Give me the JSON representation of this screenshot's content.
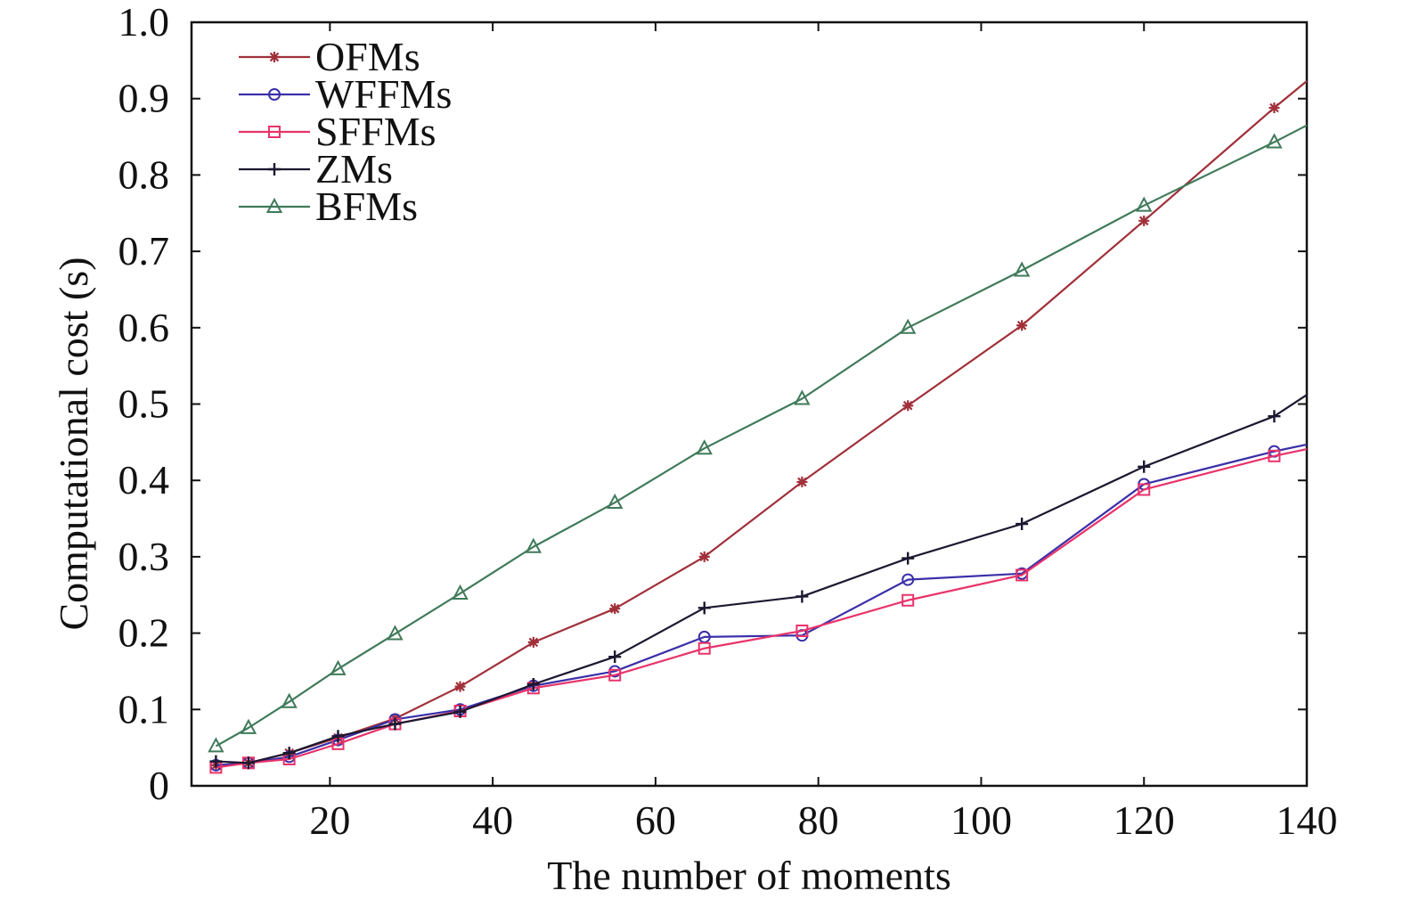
{
  "chart_data": {
    "type": "line",
    "title": "",
    "xlabel": "The number of moments",
    "ylabel": "Computational cost (s)",
    "xlim": [
      3,
      140
    ],
    "ylim": [
      0,
      1.0
    ],
    "x_ticks": [
      20,
      40,
      60,
      80,
      100,
      120,
      140
    ],
    "x_tick_labels": [
      "20",
      "40",
      "60",
      "80",
      "100",
      "120",
      "140"
    ],
    "y_ticks": [
      0,
      0.1,
      0.2,
      0.3,
      0.4,
      0.5,
      0.6,
      0.7,
      0.8,
      0.9,
      1.0
    ],
    "y_tick_labels": [
      "0",
      "0.1",
      "0.2",
      "0.3",
      "0.4",
      "0.5",
      "0.6",
      "0.7",
      "0.8",
      "0.9",
      "1.0"
    ],
    "grid": false,
    "legend_position": "top-left",
    "x": [
      6,
      10,
      15,
      21,
      28,
      36,
      45,
      55,
      66,
      78,
      91,
      105,
      120,
      136
    ],
    "series": [
      {
        "name": "OFMs",
        "marker": "asterisk",
        "color": "#a0303a",
        "values": [
          0.027,
          0.03,
          0.043,
          0.063,
          0.088,
          0.13,
          0.188,
          0.232,
          0.3,
          0.398,
          0.498,
          0.603,
          0.74,
          0.888
        ],
        "end_value": 0.923
      },
      {
        "name": "WFFMs",
        "marker": "circle",
        "color": "#3a2fa8",
        "values": [
          0.027,
          0.03,
          0.038,
          0.06,
          0.087,
          0.1,
          0.131,
          0.15,
          0.195,
          0.197,
          0.27,
          0.278,
          0.395,
          0.438
        ],
        "end_value": 0.447
      },
      {
        "name": "SFFMs",
        "marker": "square",
        "color": "#e8336a",
        "values": [
          0.024,
          0.03,
          0.035,
          0.055,
          0.081,
          0.098,
          0.128,
          0.145,
          0.18,
          0.203,
          0.243,
          0.276,
          0.388,
          0.432
        ],
        "end_value": 0.441
      },
      {
        "name": "ZMs",
        "marker": "plus",
        "color": "#1c1830",
        "values": [
          0.032,
          0.03,
          0.043,
          0.065,
          0.081,
          0.097,
          0.133,
          0.169,
          0.233,
          0.248,
          0.298,
          0.343,
          0.418,
          0.484
        ],
        "end_value": 0.512
      },
      {
        "name": "BFMs",
        "marker": "triangle",
        "color": "#3f7a5a",
        "values": [
          0.052,
          0.076,
          0.11,
          0.153,
          0.199,
          0.252,
          0.313,
          0.371,
          0.442,
          0.507,
          0.6,
          0.675,
          0.76,
          0.843
        ],
        "end_value": 0.865
      }
    ]
  }
}
